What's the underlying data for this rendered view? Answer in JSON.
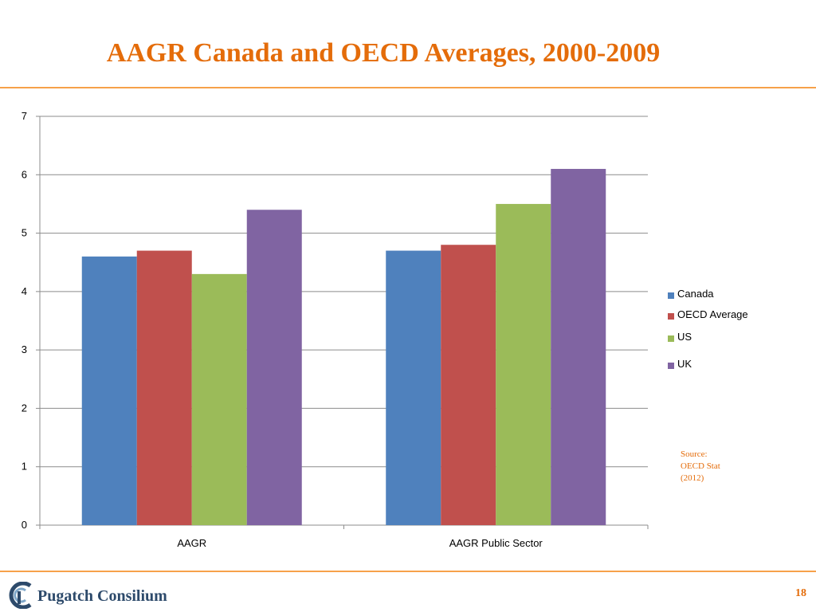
{
  "slide": {
    "title": "AAGR Canada and OECD Averages, 2000-2009",
    "source_lines": [
      "Source:",
      "OECD Stat",
      "(2012)"
    ],
    "logo_text": "Pugatch Consilium",
    "page_number": "18"
  },
  "colors": {
    "accent": "#e46c0a",
    "rule": "#f7a14a",
    "logo": "#2d4a6b"
  },
  "chart_data": {
    "type": "bar",
    "title": "",
    "xlabel": "",
    "ylabel": "",
    "categories": [
      "AAGR",
      "AAGR Public Sector"
    ],
    "series": [
      {
        "name": "Canada",
        "color": "#4f81bd",
        "values": [
          4.6,
          4.7
        ]
      },
      {
        "name": "OECD Average",
        "color": "#c0504d",
        "values": [
          4.7,
          4.8
        ]
      },
      {
        "name": "US",
        "color": "#9bbb59",
        "values": [
          4.3,
          5.5
        ]
      },
      {
        "name": "UK",
        "color": "#8064a2",
        "values": [
          5.4,
          6.1
        ]
      }
    ],
    "ylim": [
      0,
      7
    ],
    "yticks": [
      0,
      1,
      2,
      3,
      4,
      5,
      6,
      7
    ],
    "grid": true,
    "legend": "right"
  }
}
